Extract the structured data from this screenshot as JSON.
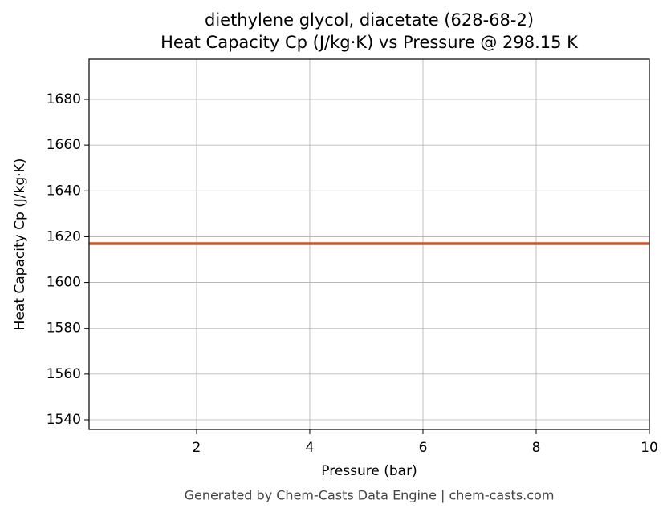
{
  "chart_data": {
    "type": "line",
    "title": "diethylene glycol, diacetate (628-68-2)",
    "subtitle": "Heat Capacity Cp (J/kg·K) vs Pressure @ 298.15 K",
    "x_label": "Pressure (bar)",
    "y_label": "Heat Capacity Cp (J/kg·K)",
    "footer": "Generated by Chem-Casts Data Engine | chem-casts.com",
    "x": [
      0.1,
      10
    ],
    "series": [
      {
        "name": "Cp",
        "color": "#c8562a",
        "values": [
          1617,
          1617
        ]
      }
    ],
    "xlim": [
      0.1,
      10
    ],
    "xticks": [
      2,
      4,
      6,
      8,
      10
    ],
    "ylim": [
      1535.8,
      1697.5
    ],
    "yticks": [
      1540,
      1560,
      1580,
      1600,
      1620,
      1640,
      1660,
      1680
    ],
    "grid": true
  }
}
